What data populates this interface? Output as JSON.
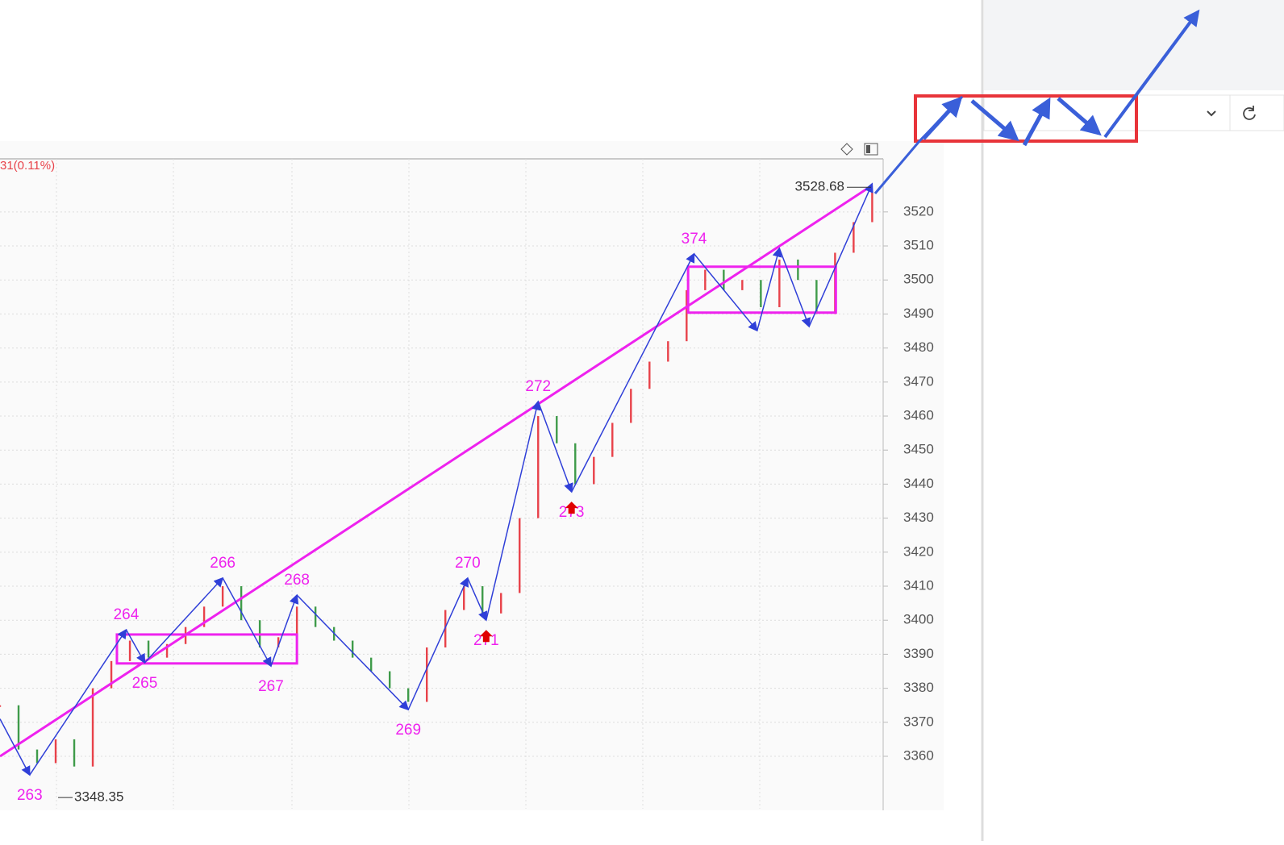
{
  "chart_data": {
    "type": "candle-zigzag",
    "change_label": "31(0.11%)",
    "high": 3528.68,
    "low": 3348.35,
    "xlim": [
      0,
      236
    ],
    "ylim": [
      3344.6,
      3535.6
    ],
    "yticks": [
      3360,
      3370,
      3380,
      3390,
      3400,
      3410,
      3420,
      3430,
      3440,
      3450,
      3460,
      3470,
      3480,
      3490,
      3500,
      3510,
      3520
    ],
    "price": {
      "x": [
        0,
        5,
        10,
        15,
        20,
        25,
        30,
        35,
        40,
        45,
        50,
        55,
        60,
        65,
        70,
        75,
        80,
        85,
        90,
        95,
        100,
        105,
        110,
        115,
        120,
        125,
        130,
        135,
        140,
        145,
        150,
        155,
        160,
        165,
        170,
        175,
        180,
        185,
        190,
        195,
        200,
        205,
        210,
        215,
        220,
        225,
        230,
        235
      ],
      "values": [
        3375,
        3362,
        3358,
        3365,
        3357,
        3380,
        3388,
        3394,
        3389,
        3393,
        3398,
        3404,
        3410,
        3400,
        3392,
        3395,
        3404,
        3398,
        3394,
        3389,
        3385,
        3380,
        3376,
        3392,
        3403,
        3410,
        3402,
        3408,
        3430,
        3460,
        3452,
        3440,
        3448,
        3458,
        3468,
        3476,
        3482,
        3497,
        3503,
        3497,
        3500,
        3492,
        3506,
        3500,
        3490,
        3508,
        3517,
        3526
      ],
      "up_color": "#e8424a",
      "down_color": "#3f9b4a"
    },
    "zigzag": {
      "color": "#2f3fd8",
      "x": [
        0,
        8,
        34,
        39,
        60,
        73,
        80,
        110,
        126,
        131,
        145,
        154,
        187,
        204,
        210,
        218,
        235
      ],
      "values": [
        3371,
        3354.5,
        3397.2,
        3387.5,
        3412.4,
        3386.5,
        3407.4,
        3373.7,
        3412.4,
        3400,
        3464.3,
        3437.7,
        3507.7,
        3485.1,
        3509.3,
        3486.3,
        3528.3
      ],
      "labels": [
        null,
        "263",
        "264",
        "265",
        "266",
        "267",
        "268",
        "269",
        "270",
        "271",
        "272",
        "273",
        "374",
        null,
        null,
        null,
        null
      ]
    },
    "trend": {
      "color": "#ee22ee",
      "x": [
        0,
        235
      ],
      "values": [
        3360,
        3527.8
      ]
    },
    "boxes": [
      {
        "x": [
          31.5,
          80
        ],
        "values": [
          3395.8,
          3387.3
        ]
      },
      {
        "x": [
          185.4,
          225.2
        ],
        "values": [
          3503.9,
          3490.4
        ]
      }
    ],
    "signals": {
      "color": "#e00000",
      "x": [
        131,
        154
      ],
      "values": [
        3400,
        3437.7
      ]
    },
    "grid": true
  }
}
